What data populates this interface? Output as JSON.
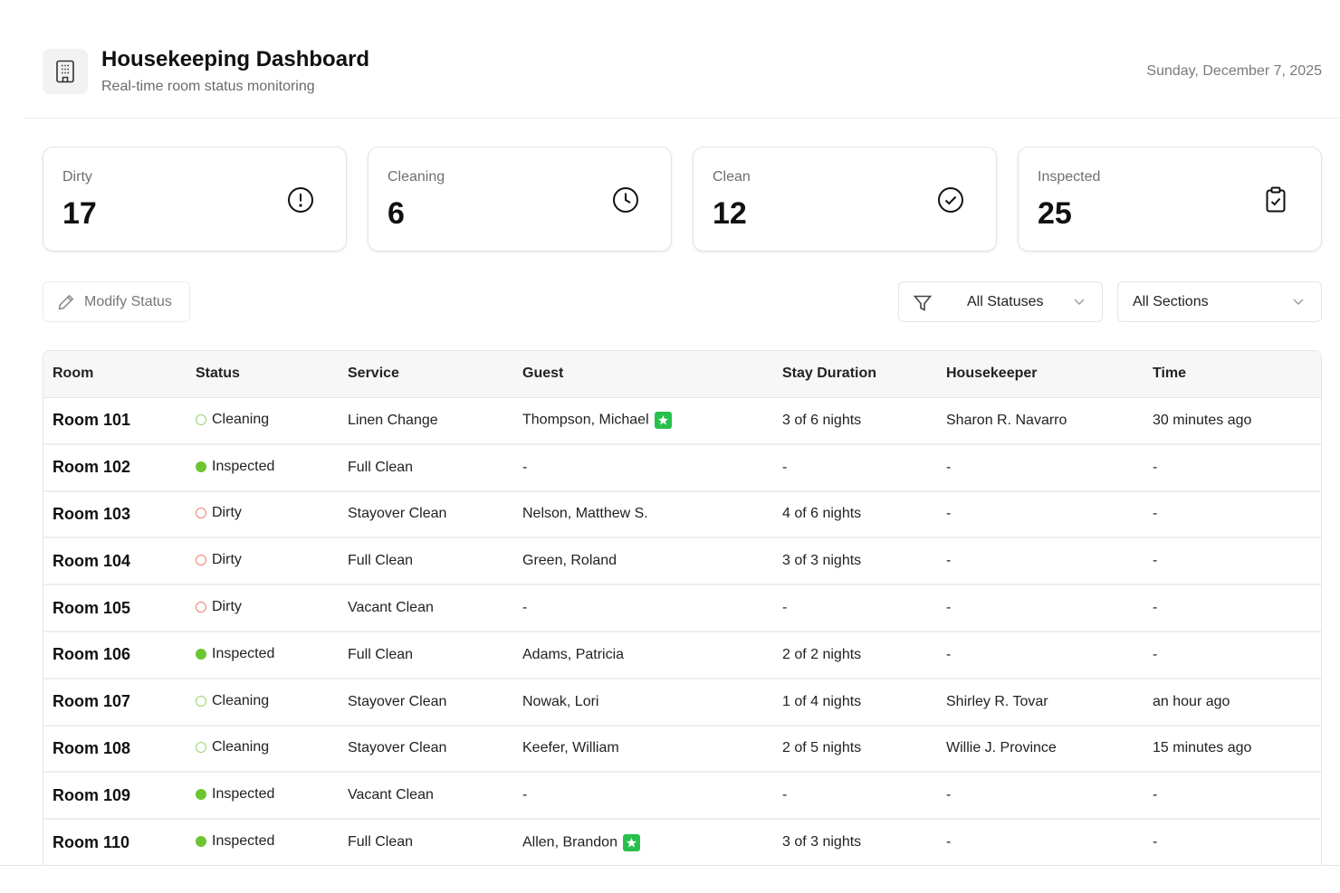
{
  "header": {
    "title": "Housekeeping Dashboard",
    "subtitle": "Real-time room status monitoring",
    "date": "Sunday, December 7, 2025",
    "icon": "building-icon"
  },
  "stats": [
    {
      "label": "Dirty",
      "value": "17",
      "icon": "alert-circle-icon"
    },
    {
      "label": "Cleaning",
      "value": "6",
      "icon": "clock-icon"
    },
    {
      "label": "Clean",
      "value": "12",
      "icon": "check-circle-icon"
    },
    {
      "label": "Inspected",
      "value": "25",
      "icon": "clipboard-check-icon"
    }
  ],
  "toolbar": {
    "modify_label": "Modify Status",
    "status_filter": "All Statuses",
    "section_filter": "All Sections"
  },
  "table": {
    "columns": [
      "Room",
      "Status",
      "Service",
      "Guest",
      "Stay Duration",
      "Housekeeper",
      "Time"
    ],
    "rows": [
      {
        "room": "Room 101",
        "status": "Cleaning",
        "service": "Linen Change",
        "guest": "Thompson, Michael",
        "vip": true,
        "stay": "3 of 6 nights",
        "housekeeper": "Sharon R. Navarro",
        "time": "30 minutes ago"
      },
      {
        "room": "Room 102",
        "status": "Inspected",
        "service": "Full Clean",
        "guest": "-",
        "vip": false,
        "stay": "-",
        "housekeeper": "-",
        "time": "-"
      },
      {
        "room": "Room 103",
        "status": "Dirty",
        "service": "Stayover Clean",
        "guest": "Nelson, Matthew S.",
        "vip": false,
        "stay": "4 of 6 nights",
        "housekeeper": "-",
        "time": "-"
      },
      {
        "room": "Room 104",
        "status": "Dirty",
        "service": "Full Clean",
        "guest": "Green, Roland",
        "vip": false,
        "stay": "3 of 3 nights",
        "housekeeper": "-",
        "time": "-"
      },
      {
        "room": "Room 105",
        "status": "Dirty",
        "service": "Vacant Clean",
        "guest": "-",
        "vip": false,
        "stay": "-",
        "housekeeper": "-",
        "time": "-"
      },
      {
        "room": "Room 106",
        "status": "Inspected",
        "service": "Full Clean",
        "guest": "Adams, Patricia",
        "vip": false,
        "stay": "2 of 2 nights",
        "housekeeper": "-",
        "time": "-"
      },
      {
        "room": "Room 107",
        "status": "Cleaning",
        "service": "Stayover Clean",
        "guest": "Nowak, Lori",
        "vip": false,
        "stay": "1 of 4 nights",
        "housekeeper": "Shirley R. Tovar",
        "time": "an hour ago"
      },
      {
        "room": "Room 108",
        "status": "Cleaning",
        "service": "Stayover Clean",
        "guest": "Keefer, William",
        "vip": false,
        "stay": "2 of 5 nights",
        "housekeeper": "Willie J. Province",
        "time": "15 minutes ago"
      },
      {
        "room": "Room 109",
        "status": "Inspected",
        "service": "Vacant Clean",
        "guest": "-",
        "vip": false,
        "stay": "-",
        "housekeeper": "-",
        "time": "-"
      },
      {
        "room": "Room 110",
        "status": "Inspected",
        "service": "Full Clean",
        "guest": "Allen, Brandon",
        "vip": true,
        "stay": "3 of 3 nights",
        "housekeeper": "-",
        "time": "-"
      }
    ]
  },
  "colors": {
    "inspected": "#6cc531",
    "cleaning": "#9bd36f",
    "dirty": "#ea7f6f",
    "vip_badge": "#28c04c"
  }
}
